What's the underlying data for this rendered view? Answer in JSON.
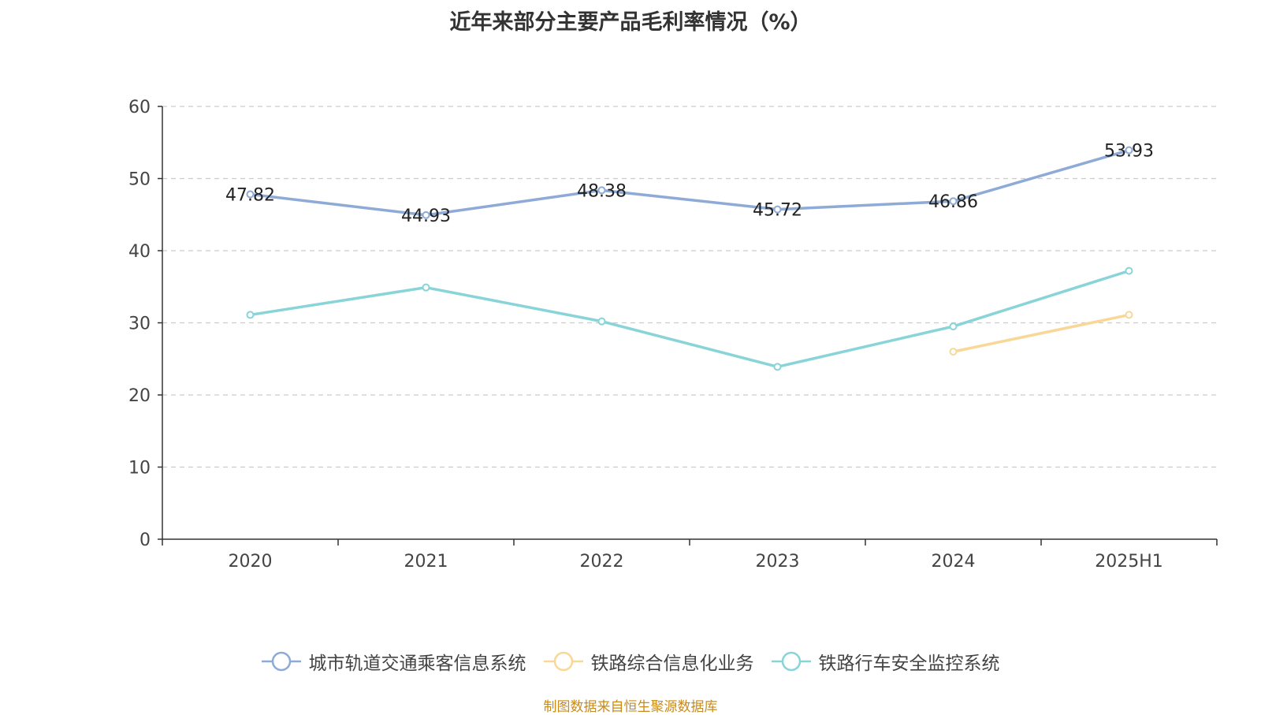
{
  "chart_data": {
    "type": "line",
    "title": "近年来部分主要产品毛利率情况（%）",
    "categories": [
      "2020",
      "2021",
      "2022",
      "2023",
      "2024",
      "2025H1"
    ],
    "ylim": [
      0,
      60
    ],
    "yticks": [
      0,
      10,
      20,
      30,
      40,
      50,
      60
    ],
    "grid": true,
    "legend_position": "bottom",
    "series": [
      {
        "name": "城市轨道交通乘客信息系统",
        "color": "#8eaad6",
        "values": [
          47.82,
          44.93,
          48.38,
          45.72,
          46.86,
          53.93
        ],
        "show_labels": true
      },
      {
        "name": "铁路综合信息化业务",
        "color": "#f9d797",
        "values": [
          null,
          null,
          null,
          null,
          26.0,
          31.1
        ],
        "show_labels": false
      },
      {
        "name": "铁路行车安全监控系统",
        "color": "#88d4d8",
        "values": [
          31.1,
          34.9,
          30.2,
          23.9,
          29.5,
          37.2
        ],
        "show_labels": false
      }
    ]
  },
  "source": "制图数据来自恒生聚源数据库"
}
